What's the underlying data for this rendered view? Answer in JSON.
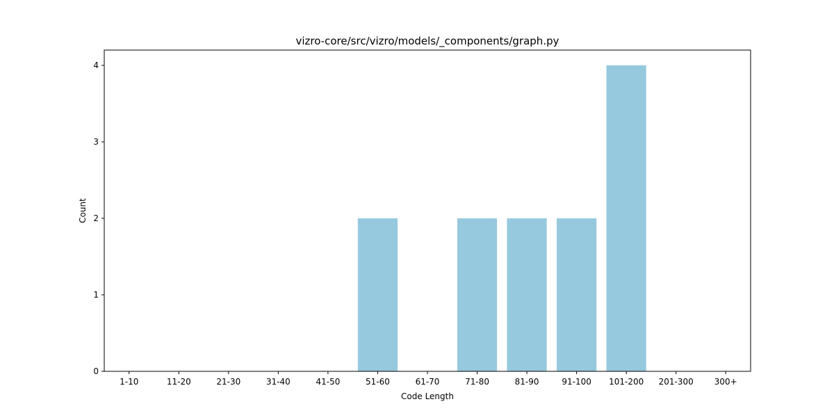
{
  "chart_data": {
    "type": "bar",
    "title": "vizro-core/src/vizro/models/_components/graph.py",
    "xlabel": "Code Length",
    "ylabel": "Count",
    "categories": [
      "1-10",
      "11-20",
      "21-30",
      "31-40",
      "41-50",
      "51-60",
      "61-70",
      "71-80",
      "81-90",
      "91-100",
      "101-200",
      "201-300",
      "300+"
    ],
    "values": [
      0,
      0,
      0,
      0,
      0,
      2,
      0,
      2,
      2,
      2,
      4,
      0,
      0
    ],
    "ylim": [
      0,
      4.2
    ],
    "yticks": [
      0,
      1,
      2,
      3,
      4
    ],
    "grid": false,
    "bar_color": "#96c9dd",
    "axis_color": "#000000"
  }
}
